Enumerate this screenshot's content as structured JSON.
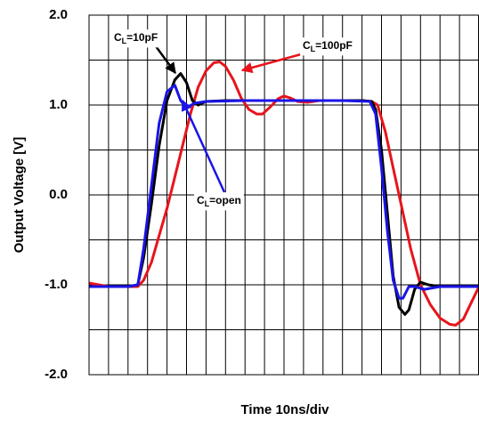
{
  "chart_data": {
    "type": "line",
    "y_label": "Output Voltage [V]",
    "x_label": "Time 10ns/div",
    "xlim": [
      0,
      200
    ],
    "xticks": [
      0,
      10,
      20,
      30,
      40,
      50,
      60,
      70,
      80,
      90,
      100,
      110,
      120,
      130,
      140,
      150,
      160,
      170,
      180,
      190,
      200
    ],
    "ylim": [
      -2,
      2
    ],
    "yticks": [
      {
        "value": 2,
        "label": "2.0"
      },
      {
        "value": 1,
        "label": "1.0"
      },
      {
        "value": 0,
        "label": "0.0"
      },
      {
        "value": -1,
        "label": "-1.0"
      },
      {
        "value": -2,
        "label": "-2.0"
      }
    ],
    "minor_yticks": [
      1.5,
      0.5,
      -0.5,
      -1.5
    ],
    "grid": true,
    "series": [
      {
        "name": "100pF",
        "color": "#e8141b",
        "x": [
          0,
          10,
          20,
          25,
          28,
          32,
          36,
          40,
          44,
          48,
          52,
          56,
          60,
          64,
          67,
          70,
          74,
          78,
          82,
          86,
          89,
          93,
          97,
          100,
          103,
          107,
          112,
          118,
          130,
          140,
          145,
          148,
          152,
          156,
          160,
          165,
          170,
          175,
          180,
          185,
          188,
          192,
          196,
          200
        ],
        "values": [
          -0.98,
          -1.02,
          -1.02,
          -1.02,
          -0.95,
          -0.75,
          -0.45,
          -0.15,
          0.2,
          0.55,
          0.9,
          1.2,
          1.38,
          1.47,
          1.48,
          1.43,
          1.28,
          1.08,
          0.95,
          0.9,
          0.9,
          0.98,
          1.07,
          1.1,
          1.08,
          1.04,
          1.03,
          1.05,
          1.05,
          1.05,
          1.04,
          1.0,
          0.7,
          0.3,
          -0.1,
          -0.6,
          -1.0,
          -1.22,
          -1.37,
          -1.44,
          -1.45,
          -1.38,
          -1.2,
          -1.02
        ]
      },
      {
        "name": "10pF",
        "color": "#000000",
        "x": [
          0,
          10,
          20,
          25,
          28,
          32,
          36,
          40,
          44,
          47,
          50,
          53,
          56,
          60,
          70,
          100,
          130,
          140,
          145,
          147,
          150,
          153,
          156,
          159,
          162,
          164,
          167,
          170,
          174,
          180,
          190,
          200
        ],
        "values": [
          -1.02,
          -1.02,
          -1.02,
          -1.0,
          -0.7,
          -0.1,
          0.55,
          1.05,
          1.28,
          1.35,
          1.25,
          1.05,
          1.0,
          1.04,
          1.05,
          1.05,
          1.05,
          1.05,
          1.04,
          0.95,
          0.5,
          -0.2,
          -0.9,
          -1.25,
          -1.33,
          -1.28,
          -1.05,
          -0.97,
          -1.0,
          -1.02,
          -1.02,
          -1.02
        ]
      },
      {
        "name": "open",
        "color": "#1a14e6",
        "x": [
          0,
          20,
          25,
          28,
          32,
          36,
          40,
          44,
          47,
          50,
          54,
          60,
          80,
          130,
          144,
          147,
          150,
          153,
          156,
          159,
          161,
          164,
          167,
          172,
          180,
          200
        ],
        "values": [
          -1.02,
          -1.02,
          -1.0,
          -0.6,
          0.1,
          0.8,
          1.15,
          1.22,
          1.05,
          0.97,
          1.02,
          1.04,
          1.05,
          1.05,
          1.04,
          0.9,
          0.3,
          -0.4,
          -0.95,
          -1.15,
          -1.15,
          -1.02,
          -1.02,
          -1.05,
          -1.02,
          -1.02
        ]
      }
    ],
    "annotations": [
      {
        "prefix": "C",
        "subscript": "L",
        "suffix": "=10pF"
      },
      {
        "prefix": "C",
        "subscript": "L",
        "suffix": "=100pF"
      },
      {
        "prefix": "C",
        "subscript": "L",
        "suffix": "=open"
      }
    ]
  }
}
